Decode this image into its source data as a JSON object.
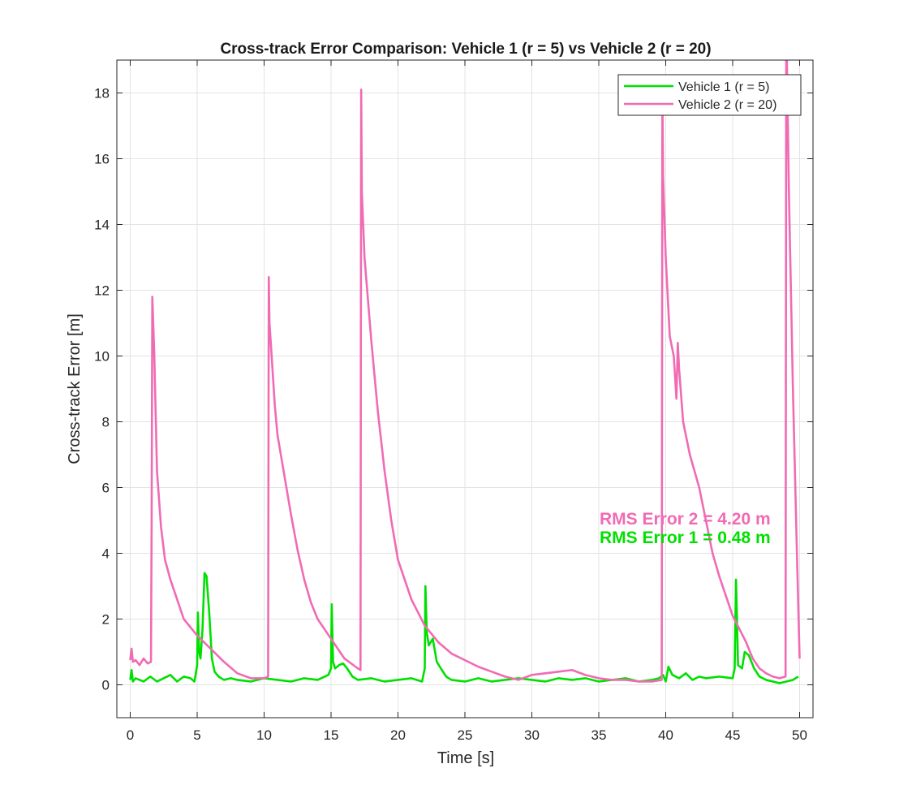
{
  "chart_data": {
    "type": "line",
    "title": "Cross-track Error Comparison: Vehicle 1 (r = 5) vs Vehicle 2 (r = 20)",
    "xlabel": "Time [s]",
    "ylabel": "Cross-track Error [m]",
    "xlim": [
      -1,
      51
    ],
    "ylim": [
      -1,
      19
    ],
    "xticks": [
      "0",
      "5",
      "10",
      "15",
      "20",
      "25",
      "30",
      "35",
      "40",
      "45",
      "50"
    ],
    "yticks": [
      "0",
      "2",
      "4",
      "6",
      "8",
      "10",
      "12",
      "14",
      "16",
      "18"
    ],
    "grid": true,
    "legend_position": "top-right",
    "series": [
      {
        "name": "Vehicle 1 (r = 5)",
        "color": "#00e000",
        "x": [
          0,
          0.1,
          0.2,
          0.4,
          0.7,
          1.0,
          1.5,
          2.0,
          2.5,
          3.0,
          3.5,
          4.0,
          4.5,
          4.8,
          5.0,
          5.05,
          5.15,
          5.25,
          5.4,
          5.55,
          5.7,
          5.9,
          6.1,
          6.3,
          6.6,
          7.0,
          7.5,
          8.0,
          9.0,
          10.0,
          11.0,
          12.0,
          13.0,
          14.0,
          14.8,
          15.0,
          15.05,
          15.15,
          15.3,
          15.6,
          15.9,
          16.2,
          16.6,
          17.0,
          18.0,
          19.0,
          20.0,
          21.0,
          21.8,
          22.0,
          22.05,
          22.15,
          22.3,
          22.6,
          22.9,
          23.2,
          23.6,
          24.0,
          25.0,
          26.0,
          27.0,
          28.0,
          29.0,
          30.0,
          31.0,
          32.0,
          33.0,
          34.0,
          35.0,
          36.0,
          37.0,
          38.0,
          39.0,
          39.5,
          39.8,
          40.0,
          40.2,
          40.5,
          41.0,
          41.5,
          42.0,
          42.5,
          43.0,
          44.0,
          45.0,
          45.15,
          45.25,
          45.4,
          45.7,
          45.9,
          46.2,
          46.6,
          47.0,
          47.5,
          48.0,
          48.5,
          49.0,
          49.5,
          49.9
        ],
        "values": [
          0.15,
          0.45,
          0.1,
          0.2,
          0.15,
          0.1,
          0.25,
          0.1,
          0.2,
          0.3,
          0.1,
          0.25,
          0.2,
          0.1,
          0.6,
          2.2,
          1.0,
          0.8,
          1.7,
          3.4,
          3.3,
          2.2,
          0.8,
          0.4,
          0.25,
          0.15,
          0.2,
          0.15,
          0.1,
          0.2,
          0.15,
          0.1,
          0.2,
          0.15,
          0.3,
          0.5,
          2.45,
          0.7,
          0.5,
          0.6,
          0.65,
          0.5,
          0.25,
          0.15,
          0.2,
          0.1,
          0.15,
          0.2,
          0.1,
          0.5,
          3.0,
          1.6,
          1.2,
          1.4,
          0.7,
          0.5,
          0.25,
          0.15,
          0.1,
          0.2,
          0.1,
          0.15,
          0.2,
          0.15,
          0.1,
          0.2,
          0.15,
          0.2,
          0.1,
          0.15,
          0.2,
          0.1,
          0.15,
          0.2,
          0.3,
          0.1,
          0.55,
          0.3,
          0.2,
          0.35,
          0.15,
          0.25,
          0.2,
          0.25,
          0.2,
          0.5,
          3.2,
          0.6,
          0.5,
          1.0,
          0.9,
          0.5,
          0.25,
          0.15,
          0.1,
          0.05,
          0.1,
          0.15,
          0.25
        ]
      },
      {
        "name": "Vehicle 2 (r = 20)",
        "color": "#f06bb4",
        "x": [
          0,
          0.1,
          0.2,
          0.4,
          0.7,
          1.0,
          1.3,
          1.55,
          1.6,
          1.65,
          1.8,
          2.0,
          2.3,
          2.6,
          3.0,
          3.5,
          4.0,
          5.0,
          6.0,
          7.0,
          8.0,
          9.0,
          10.0,
          10.3,
          10.35,
          10.4,
          10.5,
          10.8,
          11.0,
          11.5,
          12.0,
          12.5,
          13.0,
          13.5,
          14.0,
          15.0,
          16.0,
          17.0,
          17.2,
          17.25,
          17.3,
          17.5,
          18.0,
          18.5,
          19.0,
          19.5,
          20.0,
          21.0,
          22.0,
          23.0,
          24.0,
          25.0,
          26.0,
          27.0,
          28.0,
          29.0,
          30.0,
          31.0,
          32.0,
          33.0,
          34.0,
          35.0,
          36.0,
          37.0,
          38.0,
          39.0,
          39.7,
          39.75,
          39.8,
          40.0,
          40.3,
          40.6,
          40.8,
          40.9,
          41.0,
          41.3,
          41.8,
          42.5,
          43.0,
          43.5,
          44.0,
          44.5,
          45.0,
          45.5,
          46.0,
          46.5,
          47.0,
          47.5,
          48.0,
          48.5,
          48.95,
          49.0,
          49.05,
          49.2,
          49.5,
          49.8,
          50.0
        ],
        "values": [
          0.75,
          1.1,
          0.7,
          0.75,
          0.6,
          0.8,
          0.65,
          0.7,
          5.0,
          11.8,
          10.0,
          6.5,
          4.8,
          3.8,
          3.2,
          2.6,
          2.0,
          1.5,
          1.1,
          0.7,
          0.35,
          0.2,
          0.2,
          0.25,
          12.4,
          11.0,
          10.4,
          8.5,
          7.6,
          6.4,
          5.2,
          4.1,
          3.2,
          2.5,
          2.0,
          1.4,
          0.8,
          0.5,
          0.45,
          18.1,
          15.0,
          13.0,
          10.5,
          8.3,
          6.5,
          5.0,
          3.8,
          2.6,
          1.8,
          1.3,
          0.95,
          0.75,
          0.55,
          0.4,
          0.25,
          0.15,
          0.3,
          0.35,
          0.4,
          0.45,
          0.3,
          0.2,
          0.15,
          0.15,
          0.1,
          0.1,
          0.15,
          18.0,
          15.5,
          13.0,
          10.6,
          10.0,
          8.7,
          10.4,
          9.6,
          8.0,
          7.0,
          6.0,
          5.0,
          4.0,
          3.3,
          2.7,
          2.1,
          1.7,
          1.3,
          0.8,
          0.5,
          0.35,
          0.25,
          0.2,
          0.25,
          19.0,
          19.0,
          15.0,
          9.0,
          4.0,
          0.8
        ]
      }
    ],
    "annotations": [
      {
        "text": "RMS Error 2 = 4.20 m",
        "color": "#f06bb4"
      },
      {
        "text": "RMS Error 1 = 0.48 m",
        "color": "#00e000"
      }
    ]
  }
}
